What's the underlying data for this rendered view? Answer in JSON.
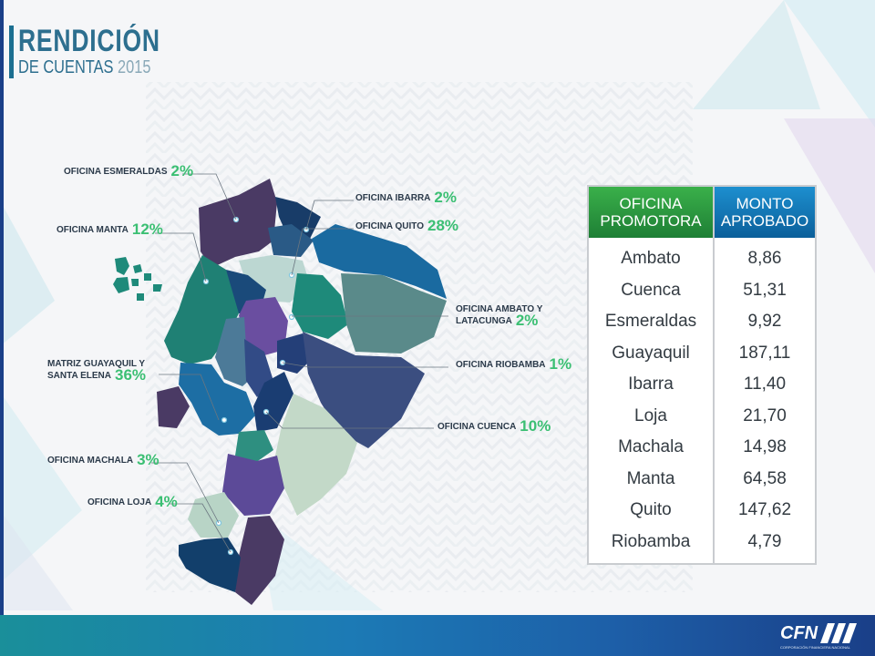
{
  "header": {
    "title": "RENDICIÓN",
    "subtitle": "DE CUENTAS",
    "year": "2015"
  },
  "map_labels": [
    {
      "name": "OFICINA ESMERALDAS",
      "percent": "2%"
    },
    {
      "name": "OFICINA IBARRA",
      "percent": "2%"
    },
    {
      "name": "OFICINA QUITO",
      "percent": "28%"
    },
    {
      "name": "OFICINA MANTA",
      "percent": "12%"
    },
    {
      "name": "OFICINA AMBATO Y LATACUNGA",
      "percent": "2%"
    },
    {
      "name": "MATRIZ GUAYAQUIL Y SANTA ELENA",
      "percent": "36%"
    },
    {
      "name": "OFICINA RIOBAMBA",
      "percent": "1%"
    },
    {
      "name": "OFICINA CUENCA",
      "percent": "10%"
    },
    {
      "name": "OFICINA MACHALA",
      "percent": "3%"
    },
    {
      "name": "OFICINA LOJA",
      "percent": "4%"
    }
  ],
  "table": {
    "col1_header": "OFICINA PROMOTORA",
    "col2_header": "MONTO APROBADO",
    "rows": [
      {
        "office": "Ambato",
        "amount": "8,86"
      },
      {
        "office": "Cuenca",
        "amount": "51,31"
      },
      {
        "office": "Esmeraldas",
        "amount": "9,92"
      },
      {
        "office": "Guayaquil",
        "amount": "187,11"
      },
      {
        "office": "Ibarra",
        "amount": "11,40"
      },
      {
        "office": "Loja",
        "amount": "21,70"
      },
      {
        "office": "Machala",
        "amount": "14,98"
      },
      {
        "office": "Manta",
        "amount": "64,58"
      },
      {
        "office": "Quito",
        "amount": "147,62"
      },
      {
        "office": "Riobamba",
        "amount": "4,79"
      }
    ]
  },
  "footer": {
    "logo_text": "CFN",
    "logo_tagline": "CORPORACIÓN FINANCIERA NACIONAL"
  },
  "colors": {
    "accent_green": "#3bbf73",
    "title_blue": "#2d6f8f",
    "header_green": "#2a9a40",
    "header_blue": "#1278b8"
  }
}
